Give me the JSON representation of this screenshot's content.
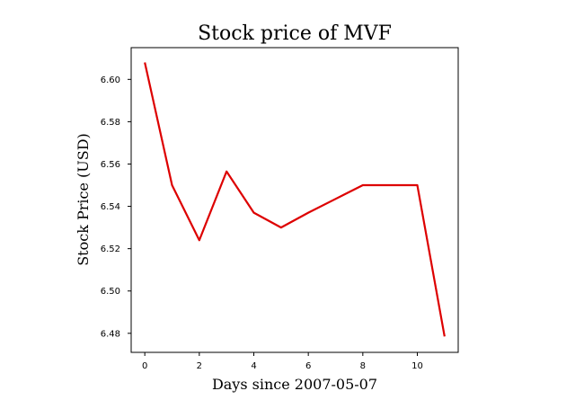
{
  "chart_data": {
    "type": "line",
    "title": "Stock price of MVF",
    "xlabel": "Days since 2007-05-07",
    "ylabel": "Stock Price (USD)",
    "x": [
      0,
      1,
      2,
      3,
      4,
      5,
      6,
      7,
      8,
      9,
      10,
      11
    ],
    "series": [
      {
        "values": [
          6.608,
          6.55,
          6.524,
          6.5565,
          6.537,
          6.53,
          6.537,
          6.5435,
          6.55,
          6.55,
          6.55,
          6.4785
        ],
        "color": "#dd0000"
      }
    ],
    "xlim": [
      -0.5,
      11.5
    ],
    "ylim": [
      6.471,
      6.615
    ],
    "xticks": [
      0,
      2,
      4,
      6,
      8,
      10
    ],
    "xtick_labels": [
      "0",
      "2",
      "4",
      "6",
      "8",
      "10"
    ],
    "yticks": [
      6.48,
      6.5,
      6.52,
      6.54,
      6.56,
      6.58,
      6.6
    ],
    "ytick_labels": [
      "6.48",
      "6.50",
      "6.52",
      "6.54",
      "6.56",
      "6.58",
      "6.60"
    ],
    "grid": false,
    "legend": false
  }
}
